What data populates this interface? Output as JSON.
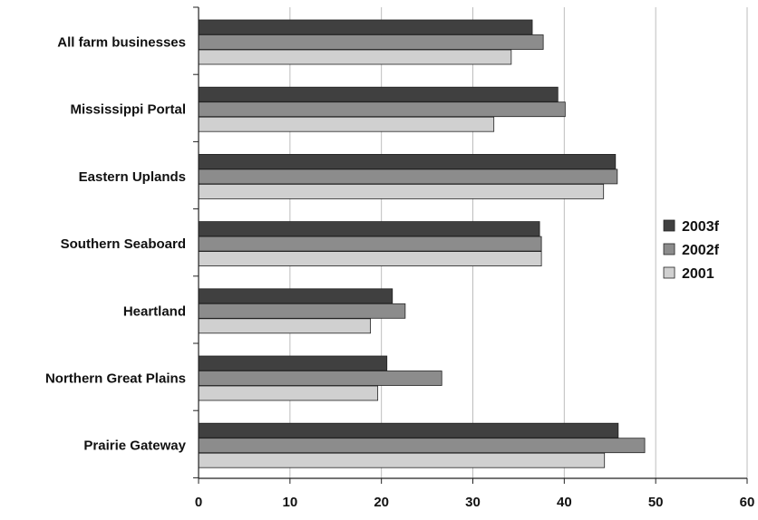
{
  "chart_data": {
    "type": "bar",
    "orientation": "horizontal",
    "categories": [
      "All farm businesses",
      "Mississippi Portal",
      "Eastern Uplands",
      "Southern Seaboard",
      "Heartland",
      "Northern Great Plains",
      "Prairie Gateway"
    ],
    "series": [
      {
        "name": "2003f",
        "values": [
          36.5,
          39.3,
          45.6,
          37.3,
          21.2,
          20.6,
          45.9
        ],
        "color": "#404040"
      },
      {
        "name": "2002f",
        "values": [
          37.7,
          40.1,
          45.8,
          37.5,
          22.6,
          26.6,
          48.8
        ],
        "color": "#8c8c8c"
      },
      {
        "name": "2001",
        "values": [
          34.2,
          32.3,
          44.3,
          37.5,
          18.8,
          19.6,
          44.4
        ],
        "color": "#d0d0d0"
      }
    ],
    "xlim": [
      0,
      60
    ],
    "xticks": [
      "0",
      "10",
      "20",
      "30",
      "40",
      "50",
      "60"
    ],
    "grid": "vertical",
    "legend_position": "right",
    "title": "",
    "xlabel": "",
    "ylabel": ""
  }
}
